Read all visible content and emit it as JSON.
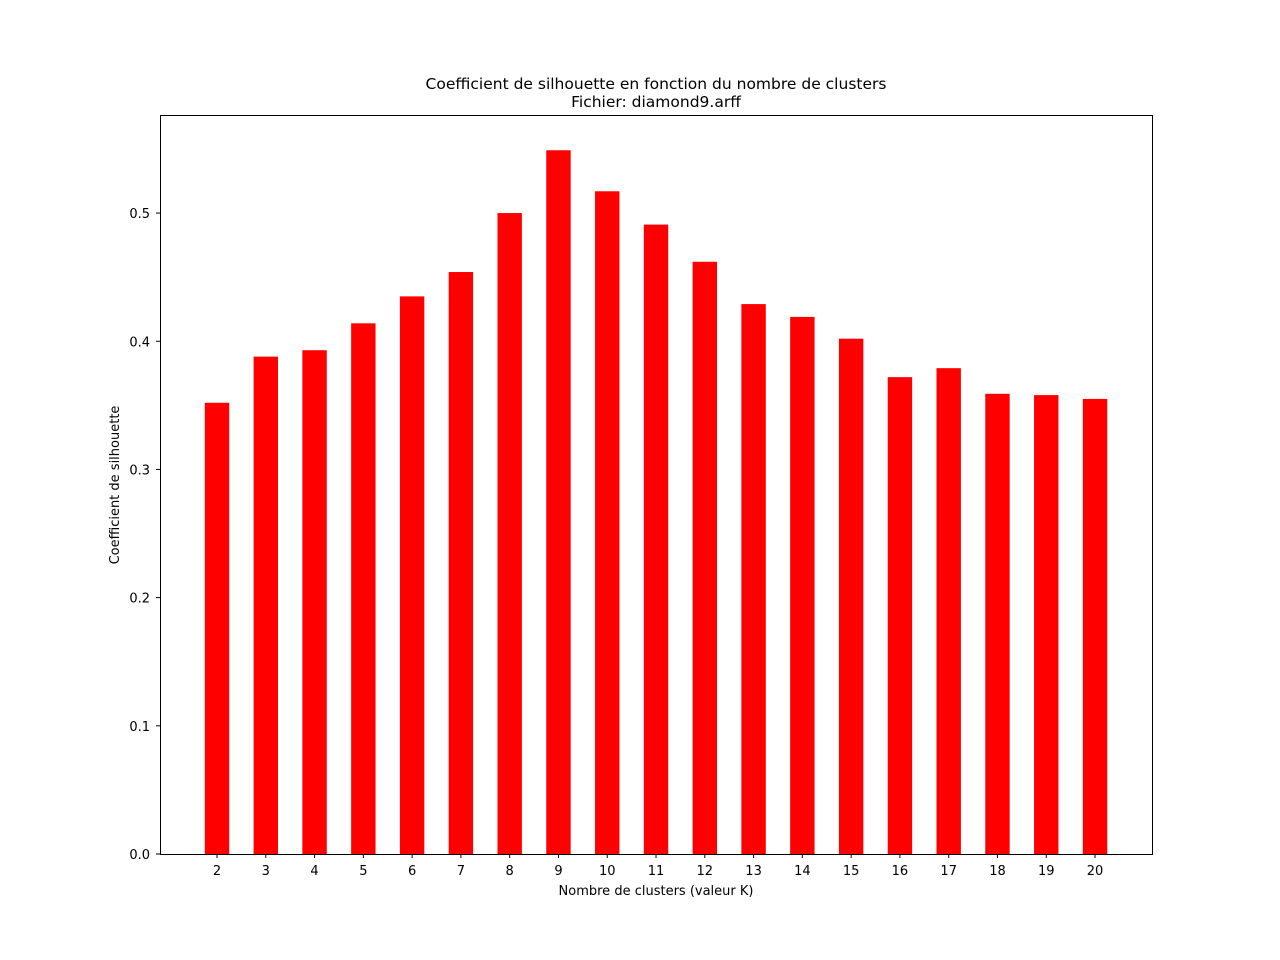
{
  "chart_data": {
    "type": "bar",
    "title": "Coefficient de silhouette en fonction du nombre de clusters",
    "subtitle": "Fichier: diamond9.arff",
    "xlabel": "Nombre de clusters (valeur K)",
    "ylabel": "Coefficient de silhouette",
    "categories": [
      "2",
      "3",
      "4",
      "5",
      "6",
      "7",
      "8",
      "9",
      "10",
      "11",
      "12",
      "13",
      "14",
      "15",
      "16",
      "17",
      "18",
      "19",
      "20"
    ],
    "values": [
      0.352,
      0.388,
      0.393,
      0.414,
      0.435,
      0.454,
      0.5,
      0.549,
      0.517,
      0.491,
      0.462,
      0.429,
      0.419,
      0.402,
      0.372,
      0.379,
      0.359,
      0.358,
      0.355
    ],
    "ylim": [
      0,
      0.5765
    ],
    "yticks": [
      "0.0",
      "0.1",
      "0.2",
      "0.3",
      "0.4",
      "0.5"
    ],
    "ytick_values": [
      0.0,
      0.1,
      0.2,
      0.3,
      0.4,
      0.5
    ],
    "bar_color": "#ff0000",
    "grid": false,
    "legend": "none"
  }
}
